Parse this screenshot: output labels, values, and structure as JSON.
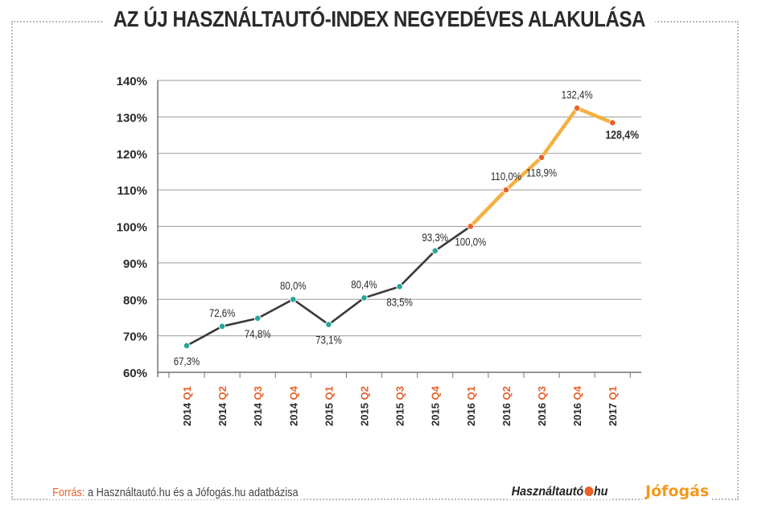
{
  "title": "AZ ÚJ HASZNÁLTAUTÓ-INDEX NEGYEDÉVES ALAKULÁSA",
  "source": {
    "label": "Forrás:",
    "text": "a Használtautó.hu és a Jófogás.hu adatbázisa"
  },
  "logos": {
    "hasznaltauto_left": "Használtautó",
    "hasznaltauto_right": "hu",
    "jofogas": "Jófogás"
  },
  "colors": {
    "line_dark": "#3a3a3a",
    "line_highlight": "#f5b041",
    "point_teal": "#26a69a",
    "point_orange": "#e8622c",
    "quarter_text": "#e8622c",
    "grid": "#9a9a9a"
  },
  "chart_data": {
    "type": "line",
    "title": "AZ ÚJ HASZNÁLTAUTÓ-INDEX NEGYEDÉVES ALAKULÁSA",
    "xlabel": "",
    "ylabel": "",
    "ylim": [
      60,
      140
    ],
    "yticks": [
      60,
      70,
      80,
      90,
      100,
      110,
      120,
      130,
      140
    ],
    "ytick_labels": [
      "60%",
      "70%",
      "80%",
      "90%",
      "100%",
      "110%",
      "120%",
      "130%",
      "140%"
    ],
    "categories": [
      {
        "year": "2014",
        "quarter": "Q1"
      },
      {
        "year": "2014",
        "quarter": "Q2"
      },
      {
        "year": "2014",
        "quarter": "Q3"
      },
      {
        "year": "2014",
        "quarter": "Q4"
      },
      {
        "year": "2015",
        "quarter": "Q1"
      },
      {
        "year": "2015",
        "quarter": "Q2"
      },
      {
        "year": "2015",
        "quarter": "Q3"
      },
      {
        "year": "2015",
        "quarter": "Q4"
      },
      {
        "year": "2016",
        "quarter": "Q1"
      },
      {
        "year": "2016",
        "quarter": "Q2"
      },
      {
        "year": "2016",
        "quarter": "Q3"
      },
      {
        "year": "2016",
        "quarter": "Q4"
      },
      {
        "year": "2017",
        "quarter": "Q1"
      }
    ],
    "values": [
      67.3,
      72.6,
      74.8,
      80.0,
      73.1,
      80.4,
      83.5,
      93.3,
      100.0,
      110.0,
      118.9,
      132.4,
      128.4
    ],
    "labels": [
      "67,3%",
      "72,6%",
      "74,8%",
      "80,0%",
      "73,1%",
      "80,4%",
      "83,5%",
      "93,3%",
      "100,0%",
      "110,0%",
      "118,9%",
      "132,4%",
      "128,4%"
    ],
    "label_position": [
      "below",
      "above",
      "below",
      "above",
      "below",
      "above",
      "below",
      "above",
      "below",
      "above",
      "below",
      "above",
      "below"
    ],
    "highlight_from_index": 8,
    "bold_label_index": 12,
    "grid": true
  }
}
